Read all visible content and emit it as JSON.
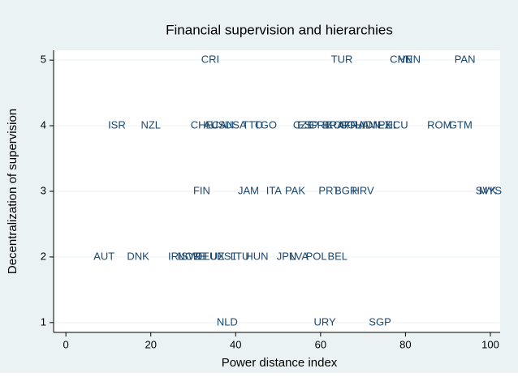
{
  "chart_data": {
    "type": "scatter",
    "title": "Financial supervision and hierarchies",
    "x_label": "Power distance index",
    "y_label": "Decentralization of supervision",
    "labels": [
      "CRI",
      "TUR",
      "CHN",
      "VEN",
      "PAN",
      "ISR",
      "NZL",
      "CHE",
      "AUS",
      "CAN",
      "USA",
      "TTO",
      "TGO",
      "CZE",
      "ESP",
      "GRC",
      "BRA",
      "KOR",
      "COL",
      "FRA",
      "THA",
      "IDN",
      "MEX",
      "PHL",
      "ECU",
      "ROM",
      "GTM",
      "FIN",
      "JAM",
      "ITA",
      "PAK",
      "PRT",
      "BGR",
      "HRV",
      "SVK",
      "MYS",
      "AUT",
      "DNK",
      "IRL",
      "NOR",
      "SWE",
      "DEU",
      "LUX",
      "EST",
      "LTU",
      "HUN",
      "JPN",
      "LVA",
      "POL",
      "BEL",
      "NLD",
      "URY",
      "SGP"
    ],
    "x": [
      34,
      65,
      79,
      81,
      94,
      12,
      20,
      32,
      35,
      37,
      40,
      44,
      47,
      56,
      57,
      60,
      63,
      64,
      67,
      68,
      69,
      72,
      74,
      76,
      78,
      88,
      93,
      32,
      43,
      49,
      54,
      62,
      66,
      70,
      99,
      100,
      9,
      17,
      26,
      29,
      30,
      33,
      35,
      38,
      41,
      45,
      52,
      55,
      59,
      64,
      38,
      61,
      74
    ],
    "values": [
      5,
      5,
      5,
      5,
      5,
      4,
      4,
      4,
      4,
      4,
      4,
      4,
      4,
      4,
      4,
      4,
      4,
      4,
      4,
      4,
      4,
      4,
      4,
      4,
      4,
      4,
      4,
      3,
      3,
      3,
      3,
      3,
      3,
      3,
      3,
      3,
      2,
      2,
      2,
      2,
      2,
      2,
      2,
      2,
      2,
      2,
      2,
      2,
      2,
      2,
      1,
      1,
      1
    ],
    "color": "#1a476f",
    "xlim": [
      -2.9,
      102.3
    ],
    "ylim": [
      0.85,
      5.15
    ],
    "xticks": [
      0,
      20,
      40,
      60,
      80,
      100
    ],
    "yticks": [
      1,
      2,
      3,
      4,
      5
    ],
    "grid": true
  }
}
